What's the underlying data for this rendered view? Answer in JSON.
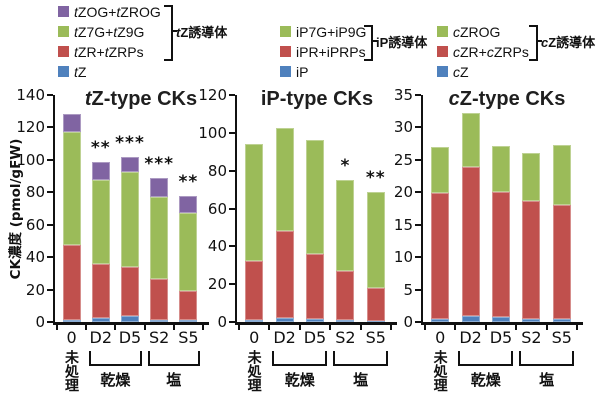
{
  "figure": {
    "background": "#ffffff",
    "axis_color": "#111111",
    "ylabel": "CK濃度 (pmol/gFW)"
  },
  "legends": [
    {
      "bracket_label": "*t*Z誘導体",
      "bracket_rows": [
        0,
        2
      ],
      "items": [
        {
          "color": "#8064A2",
          "label": "*t*ZOG+*t*ZROG"
        },
        {
          "color": "#9BBB59",
          "label": "*t*Z7G+*t*Z9G"
        },
        {
          "color": "#C0504D",
          "label": "*t*ZR+*t*ZRPs"
        },
        {
          "color": "#4F81BD",
          "label": "*t*Z"
        }
      ]
    },
    {
      "bracket_label": "iP誘導体",
      "bracket_rows": [
        0,
        1
      ],
      "items": [
        {
          "color": "#9BBB59",
          "label": "iP7G+iP9G"
        },
        {
          "color": "#C0504D",
          "label": "iPR+iPRPs"
        },
        {
          "color": "#4F81BD",
          "label": "iP"
        }
      ]
    },
    {
      "bracket_label": "*c*Z誘導体",
      "bracket_rows": [
        0,
        1
      ],
      "items": [
        {
          "color": "#9BBB59",
          "label": "*c*ZROG"
        },
        {
          "color": "#C0504D",
          "label": "*c*ZR+*c*ZRPs"
        },
        {
          "color": "#4F81BD",
          "label": "*c*Z"
        }
      ]
    }
  ],
  "chart_data": [
    {
      "type": "bar",
      "stacked": true,
      "title": "*t*Z-type CKs",
      "ylabel": "CK濃度 (pmol/gFW)",
      "ylim": [
        0,
        140
      ],
      "ytick": 20,
      "grid": false,
      "categories": [
        "0",
        "D2",
        "D5",
        "S2",
        "S5"
      ],
      "series": [
        {
          "name": "tZ",
          "color": "#4F81BD",
          "values": [
            1,
            2.5,
            4,
            1,
            1
          ]
        },
        {
          "name": "tZR+tZRPs",
          "color": "#C0504D",
          "values": [
            46.5,
            33.5,
            30,
            25.5,
            18
          ]
        },
        {
          "name": "tZ7G+tZ9G",
          "color": "#9BBB59",
          "values": [
            69.5,
            51.5,
            58.5,
            50.5,
            48.5
          ]
        },
        {
          "name": "tZOG+tZROG",
          "color": "#8064A2",
          "values": [
            11.5,
            11,
            9.5,
            12,
            10
          ]
        }
      ],
      "significance": [
        "",
        "**",
        "***",
        "***",
        "**"
      ],
      "groups": [
        {
          "label": "未処理",
          "span": [
            0,
            0
          ],
          "bracket": false,
          "vertical": true
        },
        {
          "label": "乾燥",
          "span": [
            1,
            2
          ],
          "bracket": true,
          "vertical": false
        },
        {
          "label": "塩",
          "span": [
            3,
            4
          ],
          "bracket": true,
          "vertical": false
        }
      ]
    },
    {
      "type": "bar",
      "stacked": true,
      "title": "iP-type CKs",
      "ylabel": "",
      "ylim": [
        0,
        120
      ],
      "ytick": 20,
      "grid": false,
      "categories": [
        "0",
        "D2",
        "D5",
        "S2",
        "S5"
      ],
      "series": [
        {
          "name": "iP",
          "color": "#4F81BD",
          "values": [
            1,
            2,
            1.5,
            0.8,
            0.5
          ]
        },
        {
          "name": "iPR+iPRPs",
          "color": "#C0504D",
          "values": [
            31,
            46,
            34.5,
            26.2,
            17.5
          ]
        },
        {
          "name": "iP7G+iP9G",
          "color": "#9BBB59",
          "values": [
            62,
            54.5,
            60,
            48,
            50.5
          ]
        }
      ],
      "significance": [
        "",
        "",
        "",
        "*",
        "**"
      ],
      "groups": [
        {
          "label": "未処理",
          "span": [
            0,
            0
          ],
          "bracket": false,
          "vertical": true
        },
        {
          "label": "乾燥",
          "span": [
            1,
            2
          ],
          "bracket": true,
          "vertical": false
        },
        {
          "label": "塩",
          "span": [
            3,
            4
          ],
          "bracket": true,
          "vertical": false
        }
      ]
    },
    {
      "type": "bar",
      "stacked": true,
      "title": "*c*Z-type CKs",
      "ylabel": "",
      "ylim": [
        0,
        35
      ],
      "ytick": 5,
      "grid": false,
      "categories": [
        "0",
        "D2",
        "D5",
        "S2",
        "S5"
      ],
      "series": [
        {
          "name": "cZ",
          "color": "#4F81BD",
          "values": [
            0.5,
            0.9,
            0.7,
            0.4,
            0.4
          ]
        },
        {
          "name": "cZR+cZRPs",
          "color": "#C0504D",
          "values": [
            19.4,
            23,
            19.4,
            18.3,
            17.6
          ]
        },
        {
          "name": "cZROG",
          "color": "#9BBB59",
          "values": [
            7.1,
            8.4,
            7.1,
            7.3,
            9.3
          ]
        }
      ],
      "significance": [
        "",
        "",
        "",
        "",
        ""
      ],
      "groups": [
        {
          "label": "未処理",
          "span": [
            0,
            0
          ],
          "bracket": false,
          "vertical": true
        },
        {
          "label": "乾燥",
          "span": [
            1,
            2
          ],
          "bracket": true,
          "vertical": false
        },
        {
          "label": "塩",
          "span": [
            3,
            4
          ],
          "bracket": true,
          "vertical": false
        }
      ]
    }
  ]
}
